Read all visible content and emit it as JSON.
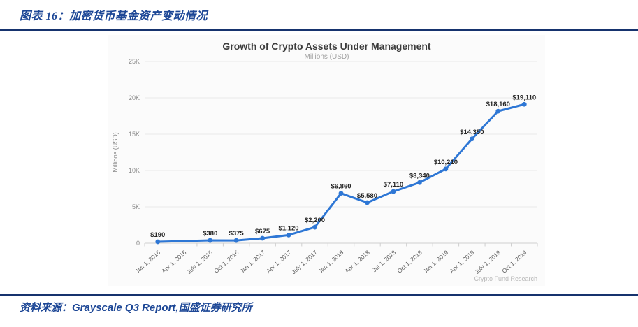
{
  "page": {
    "figure_caption": "图表 16：加密货币基金资产变动情况",
    "source": {
      "prefix": "资料来源：",
      "text": "Grayscale Q3 Report,国盛证券研究所"
    },
    "accent_navy": "#1d4796",
    "rule_color": "#16336e"
  },
  "chart_data": {
    "type": "line",
    "title": "Growth of Crypto Assets Under Management",
    "subtitle": "Millions (USD)",
    "ylabel": "Millions (USD)",
    "watermark": "Crypto Fund Research",
    "categories": [
      "Jan 1, 2016",
      "Apr 1, 2016",
      "July 1, 2016",
      "Oct 1, 2016",
      "Jan 1, 2017",
      "Apr 1, 2017",
      "July 1, 2017",
      "Jan 1, 2018",
      "Apr 1, 2018",
      "Jul 1, 2018",
      "Oct 1, 2018",
      "Jan 1, 2019",
      "Apr 1, 2019",
      "July 1, 2019",
      "Oct 1, 2019"
    ],
    "values": [
      190,
      null,
      380,
      375,
      675,
      1120,
      2200,
      6860,
      5580,
      7110,
      8340,
      10210,
      14350,
      18160,
      19110
    ],
    "labels": [
      "$190",
      null,
      "$380",
      "$375",
      "$675",
      "$1,120",
      "$2,200",
      "$6,860",
      "$5,580",
      "$7,110",
      "$8,340",
      "$10,210",
      "$14,350",
      "$18,160",
      "$19,110"
    ],
    "ylim": [
      0,
      25000
    ],
    "yticks": [
      0,
      5000,
      10000,
      15000,
      20000,
      25000
    ],
    "ytick_labels": [
      "0",
      "5K",
      "10K",
      "15K",
      "20K",
      "25K"
    ],
    "line_color": "#2e77d5",
    "grid": true,
    "legend": "none"
  }
}
